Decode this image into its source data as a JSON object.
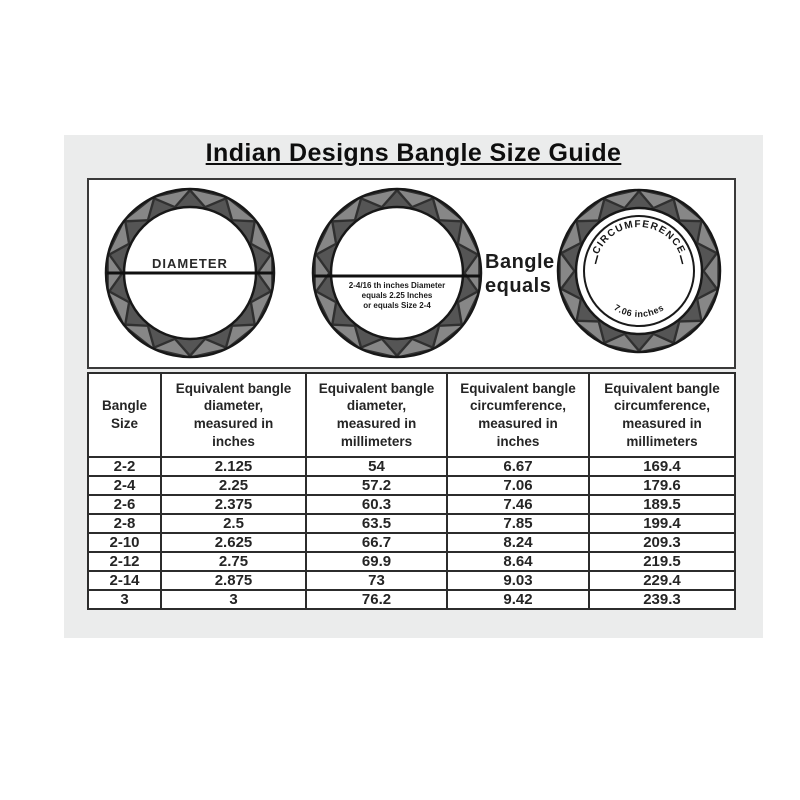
{
  "title": "Indian Designs Bangle Size Guide",
  "diagram": {
    "diameter_label": "DIAMETER",
    "example_caption_lines": [
      "2-4/16 th inches Diameter",
      "equals 2.25 Inches",
      "or equals Size 2-4"
    ],
    "bangle_equals_lines": [
      "Bangle",
      "equals"
    ],
    "circumference_label": "CIRCUMFERENCE",
    "circumference_value": "7.06 inches"
  },
  "table": {
    "headers": [
      "Bangle\nSize",
      "Equivalent bangle\ndiameter,\nmeasured in\ninches",
      "Equivalent bangle\ndiameter,\nmeasured in\nmillimeters",
      "Equivalent bangle\ncircumference,\nmeasured in\ninches",
      "Equivalent bangle\ncircumference,\nmeasured in\nmillimeters"
    ],
    "rows": [
      [
        "2-2",
        "2.125",
        "54",
        "6.67",
        "169.4"
      ],
      [
        "2-4",
        "2.25",
        "57.2",
        "7.06",
        "179.6"
      ],
      [
        "2-6",
        "2.375",
        "60.3",
        "7.46",
        "189.5"
      ],
      [
        "2-8",
        "2.5",
        "63.5",
        "7.85",
        "199.4"
      ],
      [
        "2-10",
        "2.625",
        "66.7",
        "8.24",
        "209.3"
      ],
      [
        "2-12",
        "2.75",
        "69.9",
        "8.64",
        "219.5"
      ],
      [
        "2-14",
        "2.875",
        "73",
        "9.03",
        "229.4"
      ],
      [
        "3",
        "3",
        "76.2",
        "9.42",
        "239.3"
      ]
    ]
  },
  "chart_data": {
    "type": "table",
    "title": "Indian Designs Bangle Size Guide",
    "columns": [
      "Bangle Size",
      "Equivalent bangle diameter, measured in inches",
      "Equivalent bangle diameter, measured in millimeters",
      "Equivalent bangle circumference, measured in inches",
      "Equivalent bangle circumference, measured in millimeters"
    ],
    "rows": [
      [
        "2-2",
        2.125,
        54,
        6.67,
        169.4
      ],
      [
        "2-4",
        2.25,
        57.2,
        7.06,
        179.6
      ],
      [
        "2-6",
        2.375,
        60.3,
        7.46,
        189.5
      ],
      [
        "2-8",
        2.5,
        63.5,
        7.85,
        199.4
      ],
      [
        "2-10",
        2.625,
        66.7,
        8.24,
        209.3
      ],
      [
        "2-12",
        2.75,
        69.9,
        8.64,
        219.5
      ],
      [
        "2-14",
        2.875,
        73,
        9.03,
        229.4
      ],
      [
        "3",
        3,
        76.2,
        9.42,
        239.3
      ]
    ],
    "annotations": {
      "example": "2-4/16 th inches Diameter equals 2.25 Inches or equals Size 2-4",
      "circumference_example": "7.06 inches"
    }
  },
  "colors": {
    "panel_bg": "#ebecec",
    "ink": "#252525",
    "ring_dark": "#303030",
    "ring_facet_light": "#878787",
    "ring_facet_dark": "#555555"
  }
}
